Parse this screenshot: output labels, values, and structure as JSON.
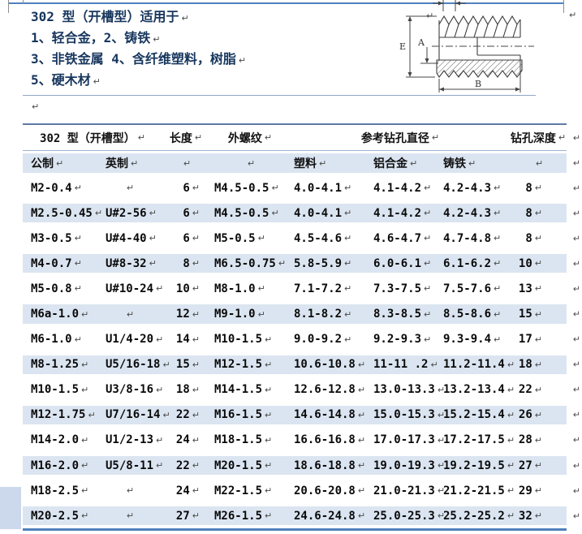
{
  "intro": {
    "lines": [
      "302 型（开槽型）适用于",
      "1、轻合金，2、铸铁",
      "3、非铁金属 4、含纤维塑料，树脂",
      "5、硬木材"
    ]
  },
  "marks": {
    "pilcrow": "↵"
  },
  "diagram": {
    "labels": {
      "e": "E",
      "a": "A",
      "b": "B"
    }
  },
  "table": {
    "header_row1": {
      "type_col": "302 型（开槽型）",
      "length": "长度",
      "external_thread": "外螺纹",
      "ref_drill_diameter": "参考钻孔直径",
      "drill_depth": "钻孔深度"
    },
    "header_row2": {
      "metric": "公制",
      "imperial": "英制",
      "plastic": "塑料",
      "aluminum_alloy": "铝合金",
      "cast_iron": "铸铁"
    },
    "rows": [
      [
        "M2-0.4",
        "",
        "6",
        "M4.5-0.5",
        "4.0-4.1",
        "4.1-4.2",
        "4.2-4.3",
        "8"
      ],
      [
        "M2.5-0.45",
        "U#2-56",
        "6",
        "M4.5-0.5",
        "4.0-4.1",
        "4.1-4.2",
        "4.2-4.3",
        "8"
      ],
      [
        "M3-0.5",
        "U#4-40",
        "6",
        "M5-0.5",
        "4.5-4.6",
        "4.6-4.7",
        "4.7-4.8",
        "8"
      ],
      [
        "M4-0.7",
        "U#8-32",
        "8",
        "M6.5-0.75",
        "5.8-5.9",
        "6.0-6.1",
        "6.1-6.2",
        "10"
      ],
      [
        "M5-0.8",
        "U#10-24",
        "10",
        "M8-1.0",
        "7.1-7.2",
        "7.3-7.5",
        "7.5-7.6",
        "13"
      ],
      [
        "M6a-1.0",
        "",
        "12",
        "M9-1.0",
        "8.1-8.2",
        "8.3-8.5",
        "8.5-8.6",
        "15"
      ],
      [
        "M6-1.0",
        "U1/4-20",
        "14",
        "M10-1.5",
        "9.0-9.2",
        "9.2-9.3",
        "9.3-9.4",
        "17"
      ],
      [
        "M8-1.25",
        "U5/16-18",
        "15",
        "M12-1.5",
        "10.6-10.8",
        "11-11 .2",
        "11.2-11.4",
        "18"
      ],
      [
        "M10-1.5",
        "U3/8-16",
        "18",
        "M14-1.5",
        "12.6-12.8",
        "13.0-13.3",
        "13.2-13.4",
        "22"
      ],
      [
        "M12-1.75",
        "U7/16-14",
        "22",
        "M16-1.5",
        "14.6-14.8",
        "15.0-15.3",
        "15.2-15.4",
        "26"
      ],
      [
        "M14-2.0",
        "U1/2-13",
        "24",
        "M18-1.5",
        "16.6-16.8",
        "17.0-17.3",
        "17.2-17.5",
        "28"
      ],
      [
        "M16-2.0",
        "U5/8-11",
        "22",
        "M20-1.5",
        "18.6-18.8",
        "19.0-19.3",
        "19.2-19.5",
        "27"
      ],
      [
        "M18-2.5",
        "",
        "24",
        "M22-1.5",
        "20.6-20.8",
        "21.0-21.3",
        "21.2-21.5",
        "29"
      ],
      [
        "M20-2.5",
        "",
        "27",
        "M26-1.5",
        "24.6-24.8",
        "25.0-25.3",
        "25.2-25.2",
        "32"
      ]
    ]
  },
  "colors": {
    "accent_border": "#4f81bd",
    "row_shade": "#dbe5f1",
    "heading_text": "#17365d"
  }
}
